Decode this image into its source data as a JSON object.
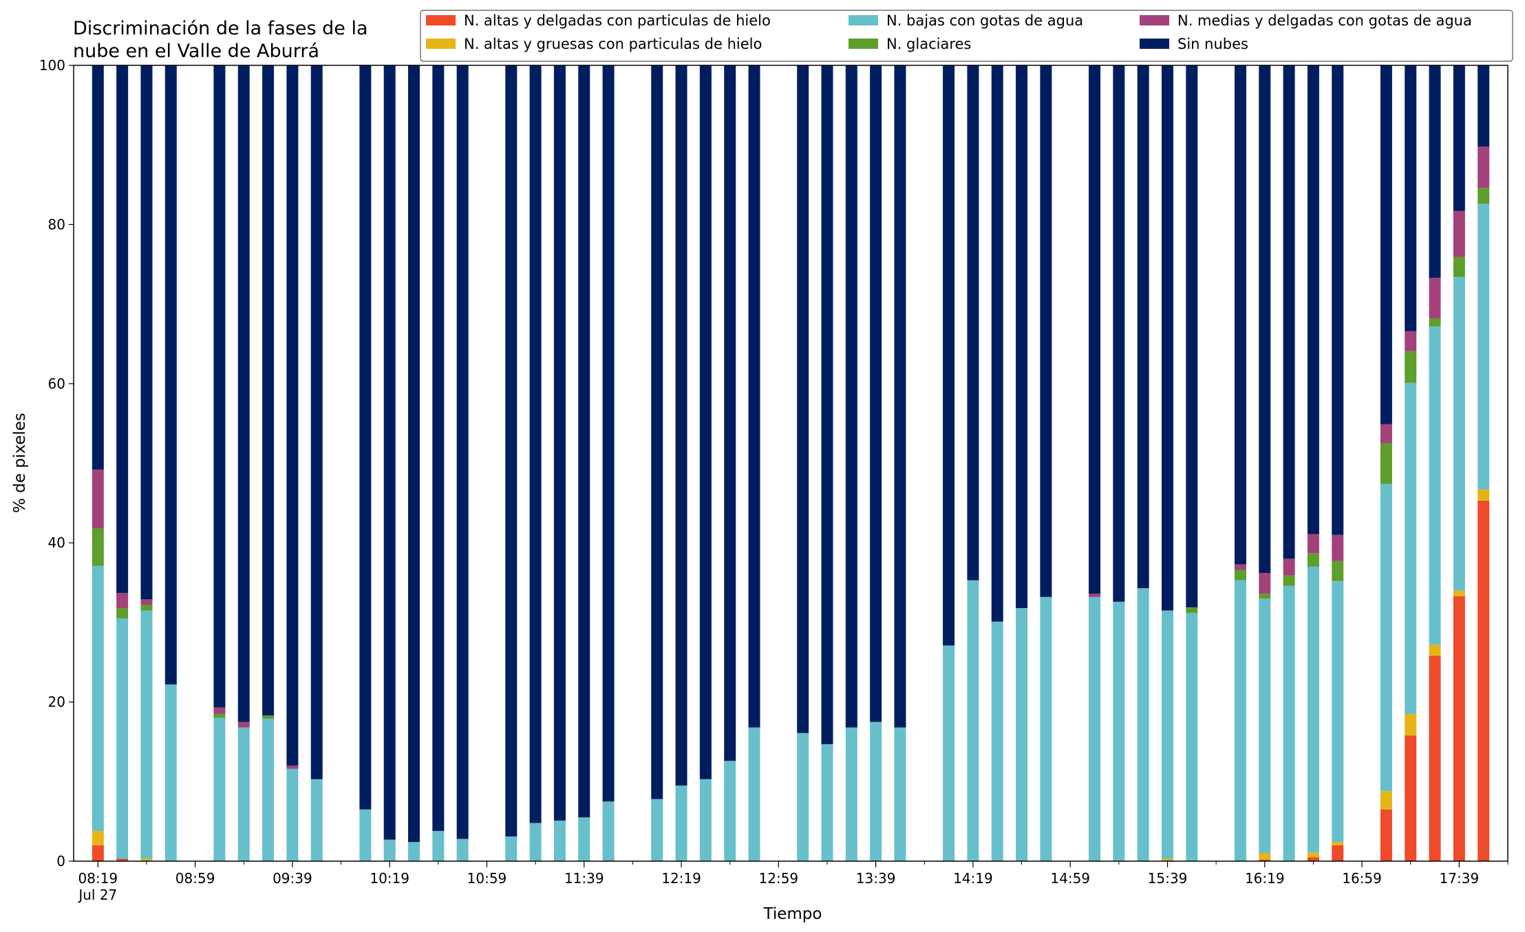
{
  "chart_data": {
    "type": "bar",
    "stacked": true,
    "title_lines": [
      "Discriminación de la fases de la",
      "nube en el Valle de Aburrá"
    ],
    "xlabel": "Tiempo",
    "ylabel": "% de pixeles",
    "ylim": [
      0,
      100
    ],
    "y_ticks": [
      "0",
      "20",
      "40",
      "60",
      "80",
      "100"
    ],
    "x_range": [
      "08:09",
      "17:59"
    ],
    "x_major_ticks": [
      {
        "x": "08:19",
        "label": "08:19",
        "sublabel": "Jul 27"
      },
      {
        "x": "08:59",
        "label": "08:59"
      },
      {
        "x": "09:39",
        "label": "09:39"
      },
      {
        "x": "10:19",
        "label": "10:19"
      },
      {
        "x": "10:59",
        "label": "10:59"
      },
      {
        "x": "11:39",
        "label": "11:39"
      },
      {
        "x": "12:19",
        "label": "12:19"
      },
      {
        "x": "12:59",
        "label": "12:59"
      },
      {
        "x": "13:39",
        "label": "13:39"
      },
      {
        "x": "14:19",
        "label": "14:19"
      },
      {
        "x": "14:59",
        "label": "14:59"
      },
      {
        "x": "15:39",
        "label": "15:39"
      },
      {
        "x": "16:19",
        "label": "16:19"
      },
      {
        "x": "16:59",
        "label": "16:59"
      },
      {
        "x": "17:39",
        "label": "17:39"
      }
    ],
    "x_minor_tick_step_minutes": 20,
    "grid": false,
    "legend_position": "top-right",
    "legend_columns": 3,
    "categories": [
      "08:19",
      "08:29",
      "08:39",
      "08:49",
      "09:09",
      "09:19",
      "09:29",
      "09:39",
      "09:49",
      "10:09",
      "10:19",
      "10:29",
      "10:39",
      "10:49",
      "11:09",
      "11:19",
      "11:29",
      "11:39",
      "11:49",
      "12:09",
      "12:19",
      "12:29",
      "12:39",
      "12:49",
      "13:09",
      "13:19",
      "13:29",
      "13:39",
      "13:49",
      "14:09",
      "14:19",
      "14:29",
      "14:39",
      "14:49",
      "15:09",
      "15:19",
      "15:29",
      "15:39",
      "15:49",
      "16:09",
      "16:19",
      "16:29",
      "16:39",
      "16:49",
      "17:09",
      "17:19",
      "17:29",
      "17:39",
      "17:49"
    ],
    "series": [
      {
        "name": "N. altas y delgadas con particulas de hielo",
        "color": "#ef4a2a",
        "values": [
          2.0,
          0.3,
          0,
          0,
          0,
          0,
          0,
          0,
          0,
          0,
          0,
          0,
          0,
          0,
          0,
          0,
          0,
          0,
          0,
          0,
          0,
          0,
          0,
          0,
          0,
          0,
          0,
          0,
          0,
          0,
          0,
          0,
          0,
          0,
          0,
          0,
          0,
          0,
          0,
          0,
          0.2,
          0,
          0.5,
          2.0,
          6.5,
          15.8,
          25.8,
          33.3,
          45.3
        ]
      },
      {
        "name": "N. altas y gruesas con particulas de hielo",
        "color": "#e7b416",
        "values": [
          1.8,
          0,
          0.3,
          0,
          0,
          0,
          0,
          0,
          0,
          0,
          0,
          0,
          0,
          0,
          0,
          0,
          0,
          0,
          0,
          0,
          0,
          0,
          0,
          0,
          0,
          0,
          0,
          0,
          0,
          0,
          0,
          0,
          0,
          0,
          0,
          0,
          0,
          0.3,
          0,
          0,
          0.8,
          0,
          0.6,
          0.4,
          2.3,
          2.7,
          1.4,
          0.7,
          1.4
        ]
      },
      {
        "name": "N. bajas con gotas de agua",
        "color": "#68bfcc",
        "values": [
          33.3,
          30.2,
          31.2,
          22.2,
          18.0,
          16.8,
          17.9,
          11.6,
          10.3,
          6.5,
          2.7,
          2.4,
          3.8,
          2.8,
          3.1,
          4.8,
          5.1,
          5.5,
          7.5,
          7.8,
          9.5,
          10.3,
          12.6,
          16.8,
          16.1,
          14.7,
          16.8,
          17.5,
          16.8,
          27.1,
          35.3,
          30.1,
          31.8,
          33.2,
          33.2,
          32.6,
          34.3,
          31.2,
          31.2,
          35.3,
          32.0,
          34.6,
          35.9,
          32.8,
          38.6,
          41.6,
          40.0,
          39.4,
          35.9
        ]
      },
      {
        "name": "N. glaciares",
        "color": "#5d9e2c",
        "values": [
          4.7,
          1.3,
          0.7,
          0,
          0.5,
          0,
          0.4,
          0,
          0,
          0,
          0,
          0,
          0,
          0,
          0,
          0,
          0,
          0,
          0,
          0,
          0,
          0,
          0,
          0,
          0,
          0,
          0,
          0,
          0,
          0,
          0,
          0,
          0,
          0,
          0,
          0,
          0,
          0,
          0.7,
          1.3,
          0.6,
          1.3,
          1.7,
          2.5,
          5.1,
          4.0,
          1.0,
          2.5,
          2.0
        ]
      },
      {
        "name": "N. medias y delgadas con gotas de agua",
        "color": "#a3417b",
        "values": [
          7.4,
          1.9,
          0.7,
          0,
          0.8,
          0.7,
          0,
          0.4,
          0,
          0,
          0,
          0,
          0,
          0,
          0,
          0,
          0,
          0,
          0,
          0,
          0,
          0,
          0,
          0,
          0,
          0,
          0,
          0,
          0,
          0,
          0,
          0,
          0,
          0,
          0.4,
          0,
          0,
          0,
          0,
          0.7,
          2.6,
          2.1,
          2.4,
          3.3,
          2.4,
          2.5,
          5.1,
          5.8,
          5.2
        ]
      },
      {
        "name": "Sin nubes",
        "color": "#001e5f",
        "values": [
          50.8,
          66.3,
          67.1,
          77.8,
          80.7,
          82.5,
          81.7,
          88.0,
          89.7,
          93.5,
          97.3,
          97.6,
          96.2,
          97.2,
          96.9,
          95.2,
          94.9,
          94.5,
          92.5,
          92.2,
          90.5,
          89.7,
          87.4,
          83.2,
          83.9,
          85.3,
          83.2,
          82.5,
          83.2,
          72.9,
          64.7,
          69.9,
          68.2,
          66.8,
          66.4,
          67.4,
          65.7,
          68.5,
          68.1,
          62.7,
          63.8,
          62.0,
          58.9,
          59.0,
          45.1,
          33.4,
          26.7,
          18.3,
          10.2
        ]
      }
    ]
  }
}
